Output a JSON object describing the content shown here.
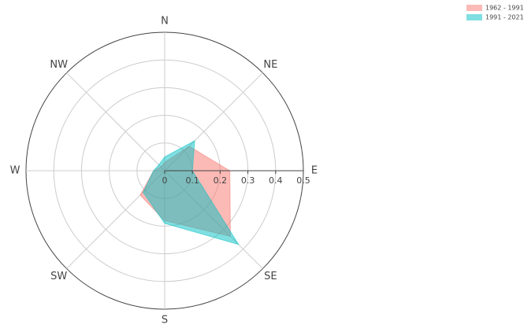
{
  "chart_data": {
    "type": "radar",
    "categories": [
      "N",
      "NE",
      "E",
      "SE",
      "S",
      "SW",
      "W",
      "NW"
    ],
    "series": [
      {
        "name": "1962 - 1991",
        "color": "#f8766d",
        "values": [
          0.03,
          0.125,
          0.235,
          0.335,
          0.18,
          0.125,
          0.04,
          0.02
        ]
      },
      {
        "name": "1991 - 2021",
        "color": "#00bfc4",
        "values": [
          0.05,
          0.153,
          0.1,
          0.377,
          0.19,
          0.11,
          0.04,
          0.03
        ]
      }
    ],
    "rlim": [
      0,
      0.5
    ],
    "rticks": [
      0,
      0.1,
      0.2,
      0.3,
      0.4,
      0.5
    ],
    "grid": true,
    "legend": "top-right"
  }
}
